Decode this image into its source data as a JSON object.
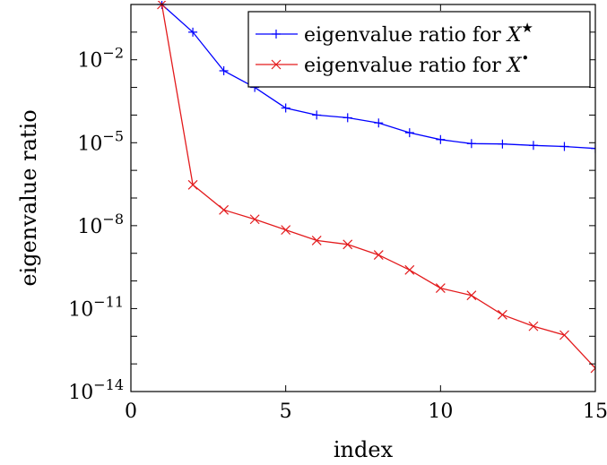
{
  "chart_data": {
    "type": "line",
    "xlabel": "index",
    "ylabel": "eigenvalue ratio",
    "xlim": [
      0,
      15
    ],
    "ylim": [
      1e-14,
      1
    ],
    "y_scale": "log",
    "grid": false,
    "legend_position": "top-right",
    "x_ticks": [
      "0",
      "5",
      "10",
      "15"
    ],
    "y_ticks": [
      {
        "value": 0.01,
        "base": "10",
        "exp": "−2"
      },
      {
        "value": 1e-05,
        "base": "10",
        "exp": "−5"
      },
      {
        "value": 1e-08,
        "base": "10",
        "exp": "−8"
      },
      {
        "value": 1e-11,
        "base": "10",
        "exp": "−11"
      },
      {
        "value": 1e-14,
        "base": "10",
        "exp": "−14"
      }
    ],
    "series": [
      {
        "name": "eigenvalue ratio for X★",
        "label_text": "eigenvalue ratio for ",
        "label_var": "X",
        "label_sup": "★",
        "color": "#0000ff",
        "marker": "plus",
        "x": [
          1,
          2,
          3,
          4,
          5,
          6,
          7,
          8,
          9,
          10,
          11,
          12,
          13,
          14,
          15
        ],
        "y": [
          1,
          0.1,
          0.004,
          0.001,
          0.00018,
          0.0001,
          8e-05,
          5.2e-05,
          2.3e-05,
          1.3e-05,
          9.3e-06,
          9e-06,
          8e-06,
          7.3e-06,
          6.2e-06
        ]
      },
      {
        "name": "eigenvalue ratio for X•",
        "label_text": "eigenvalue ratio for ",
        "label_var": "X",
        "label_sup": "•",
        "color": "#e31a1c",
        "marker": "x",
        "x": [
          1,
          2,
          3,
          4,
          5,
          6,
          7,
          8,
          9,
          10,
          11,
          12,
          13,
          14,
          15
        ],
        "y": [
          1,
          3e-07,
          3.7e-08,
          1.7e-08,
          7e-09,
          2.9e-09,
          2.1e-09,
          8.7e-10,
          2.5e-10,
          5.5e-11,
          3e-11,
          6e-12,
          2.3e-12,
          1.1e-12,
          7e-14
        ]
      }
    ]
  }
}
